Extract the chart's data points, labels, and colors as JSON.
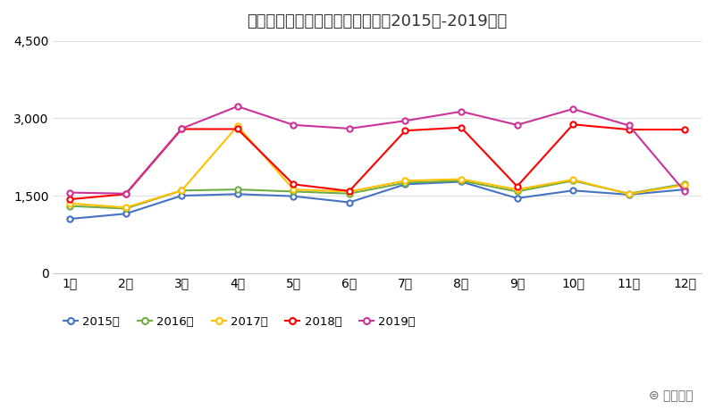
{
  "title": "月別訪日ポルトガル人観光客数（2015年-2019年）",
  "months": [
    "1月",
    "2月",
    "3月",
    "4月",
    "5月",
    "6月",
    "7月",
    "8月",
    "9月",
    "10月",
    "11月",
    "12月"
  ],
  "series": {
    "2015年": [
      1050,
      1150,
      1500,
      1530,
      1490,
      1370,
      1720,
      1770,
      1450,
      1600,
      1520,
      1620
    ],
    "2016年": [
      1300,
      1250,
      1600,
      1620,
      1580,
      1540,
      1750,
      1790,
      1580,
      1790,
      1540,
      1730
    ],
    "2017年": [
      1350,
      1270,
      1600,
      2850,
      1620,
      1580,
      1790,
      1820,
      1620,
      1810,
      1530,
      1710
    ],
    "2018年": [
      1430,
      1530,
      2790,
      2790,
      1720,
      1590,
      2760,
      2820,
      1680,
      2880,
      2780,
      2780
    ],
    "2019年": [
      1560,
      1540,
      2800,
      3230,
      2870,
      2800,
      2950,
      3130,
      2870,
      3180,
      2860,
      1580
    ]
  },
  "colors": {
    "2015年": "#4472C4",
    "2016年": "#70AD47",
    "2017年": "#FFC000",
    "2018年": "#FF0000",
    "2019年": "#CC3399"
  },
  "ylim": [
    0,
    4500
  ],
  "yticks": [
    0,
    1500,
    3000,
    4500
  ],
  "background_color": "#FFFFFF",
  "watermark": "⊜ 訪日ラボ"
}
